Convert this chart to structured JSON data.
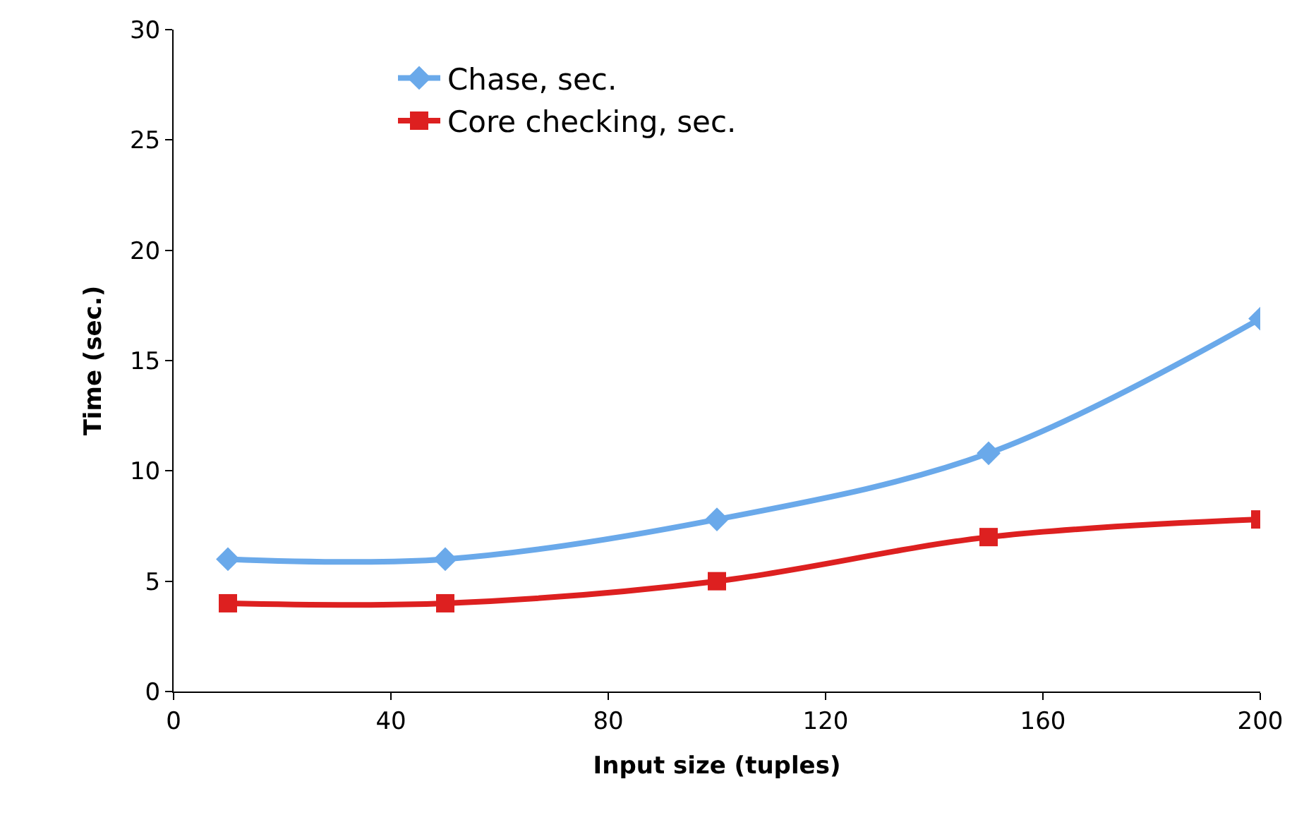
{
  "chart_data": {
    "type": "line",
    "xlabel": "Input size (tuples)",
    "ylabel": "Time (sec.)",
    "x": [
      10,
      50,
      100,
      150,
      200
    ],
    "series": [
      {
        "name": "Chase, sec.",
        "color": "#6aa9ea",
        "marker": "diamond",
        "values": [
          6.0,
          6.0,
          7.8,
          10.8,
          16.9
        ]
      },
      {
        "name": "Core checking, sec.",
        "color": "#dd2020",
        "marker": "square",
        "values": [
          4.0,
          4.0,
          5.0,
          7.0,
          7.8
        ]
      }
    ],
    "xlim": [
      0,
      200
    ],
    "xticks": [
      0,
      40,
      80,
      120,
      160,
      200
    ],
    "ylim": [
      0,
      30
    ],
    "yticks": [
      0,
      5,
      10,
      15,
      20,
      25,
      30
    ],
    "legend": "top left"
  }
}
